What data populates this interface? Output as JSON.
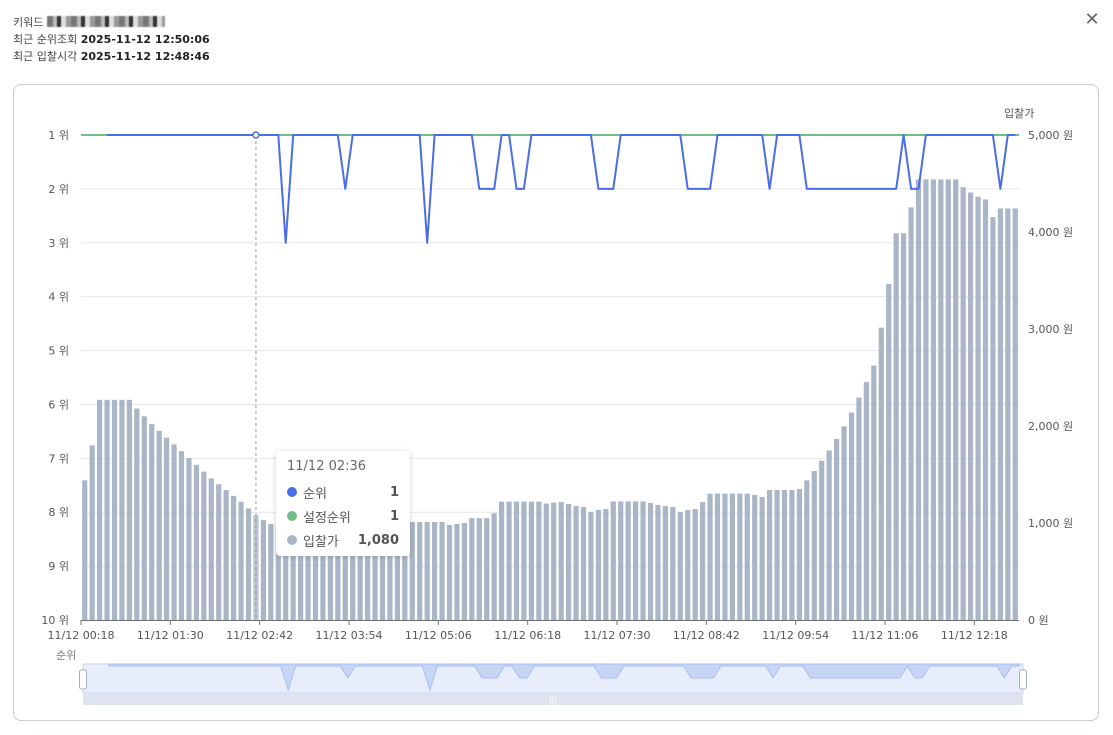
{
  "header": {
    "keyword_label": "키워드",
    "rank_checked_label": "최근 순위조회",
    "rank_checked_value": "2025-11-12 12:50:06",
    "bid_time_label": "최근 입찰시각",
    "bid_time_value": "2025-11-12 12:48:46",
    "close_icon": "close-icon"
  },
  "colors": {
    "rank": "#4b6de5",
    "target_rank": "#6fbf86",
    "bid": "#aab6c8",
    "grid": "#e4e6ea"
  },
  "tooltip": {
    "title": "11/12 02:36",
    "rows": [
      {
        "name": "순위",
        "value": "1",
        "color": "#4b6de5"
      },
      {
        "name": "설정순위",
        "value": "1",
        "color": "#6fbf86"
      },
      {
        "name": "입찰가",
        "value": "1,080",
        "color": "#aab6c8"
      }
    ]
  },
  "chart_data": {
    "type": "bar+line",
    "x_start": "11/12 00:18",
    "x_step_minutes": 6,
    "x_tick_labels": [
      "11/12 00:18",
      "11/12 01:30",
      "11/12 02:42",
      "11/12 03:54",
      "11/12 05:06",
      "11/12 06:18",
      "11/12 07:30",
      "11/12 08:42",
      "11/12 09:54",
      "11/12 11:06",
      "11/12 12:18"
    ],
    "left_axis": {
      "name": "순위",
      "ticks": [
        "1 위",
        "2 위",
        "3 위",
        "4 위",
        "5 위",
        "6 위",
        "7 위",
        "8 위",
        "9 위",
        "10 위"
      ],
      "range": [
        1,
        10
      ],
      "inverse": true
    },
    "right_axis": {
      "name": "입찰가",
      "ticks": [
        "0 원",
        "1,000 원",
        "2,000 원",
        "3,000 원",
        "4,000 원",
        "5,000 원"
      ],
      "range": [
        0,
        5000
      ]
    },
    "series": [
      {
        "name": "입찰가",
        "type": "bar",
        "axis": "right",
        "values": [
          1440,
          1800,
          2270,
          2270,
          2270,
          2270,
          2270,
          2180,
          2100,
          2020,
          1950,
          1880,
          1810,
          1740,
          1670,
          1600,
          1530,
          1460,
          1400,
          1340,
          1280,
          1220,
          1150,
          1080,
          1030,
          990,
          960,
          940,
          930,
          930,
          930,
          930,
          930,
          930,
          930,
          930,
          930,
          930,
          930,
          930,
          940,
          960,
          930,
          1010,
          1010,
          1010,
          1010,
          1010,
          1010,
          980,
          990,
          1000,
          1050,
          1050,
          1050,
          1100,
          1220,
          1220,
          1220,
          1220,
          1220,
          1220,
          1200,
          1210,
          1216,
          1196,
          1175,
          1165,
          1113,
          1134,
          1144,
          1222,
          1222,
          1222,
          1222,
          1222,
          1206,
          1186,
          1175,
          1165,
          1113,
          1134,
          1144,
          1216,
          1303,
          1303,
          1303,
          1303,
          1303,
          1303,
          1289,
          1268,
          1340,
          1340,
          1340,
          1340,
          1350,
          1439,
          1535,
          1642,
          1748,
          1866,
          1997,
          2139,
          2292,
          2452,
          2623,
          3014,
          3465,
          3987,
          3987,
          4254,
          4542,
          4542,
          4542,
          4542,
          4542,
          4542,
          4463,
          4407,
          4364,
          4336,
          4154,
          4243,
          4243,
          4243
        ]
      },
      {
        "name": "순위",
        "type": "line",
        "axis": "left",
        "values": [
          null,
          null,
          null,
          1,
          1,
          1,
          1,
          1,
          1,
          1,
          1,
          1,
          1,
          1,
          1,
          1,
          1,
          1,
          1,
          1,
          1,
          1,
          1,
          1,
          1,
          1,
          1,
          3,
          1,
          1,
          1,
          1,
          1,
          1,
          1,
          2,
          1,
          1,
          1,
          1,
          1,
          1,
          1,
          1,
          1,
          1,
          3,
          1,
          1,
          1,
          1,
          1,
          1,
          2,
          2,
          2,
          1,
          1,
          2,
          2,
          1,
          1,
          1,
          1,
          1,
          1,
          1,
          1,
          1,
          2,
          2,
          2,
          1,
          1,
          1,
          1,
          1,
          1,
          1,
          1,
          1,
          2,
          2,
          2,
          2,
          1,
          1,
          1,
          1,
          1,
          1,
          1,
          2,
          1,
          1,
          1,
          1,
          2,
          2,
          2,
          2,
          2,
          2,
          2,
          2,
          2,
          2,
          2,
          2,
          2,
          1,
          2,
          2,
          1,
          1,
          1,
          1,
          1,
          1,
          1,
          1,
          1,
          1,
          2,
          1,
          1
        ]
      },
      {
        "name": "설정순위",
        "type": "line",
        "axis": "left",
        "constant": 1
      }
    ],
    "hover_index": 23
  }
}
